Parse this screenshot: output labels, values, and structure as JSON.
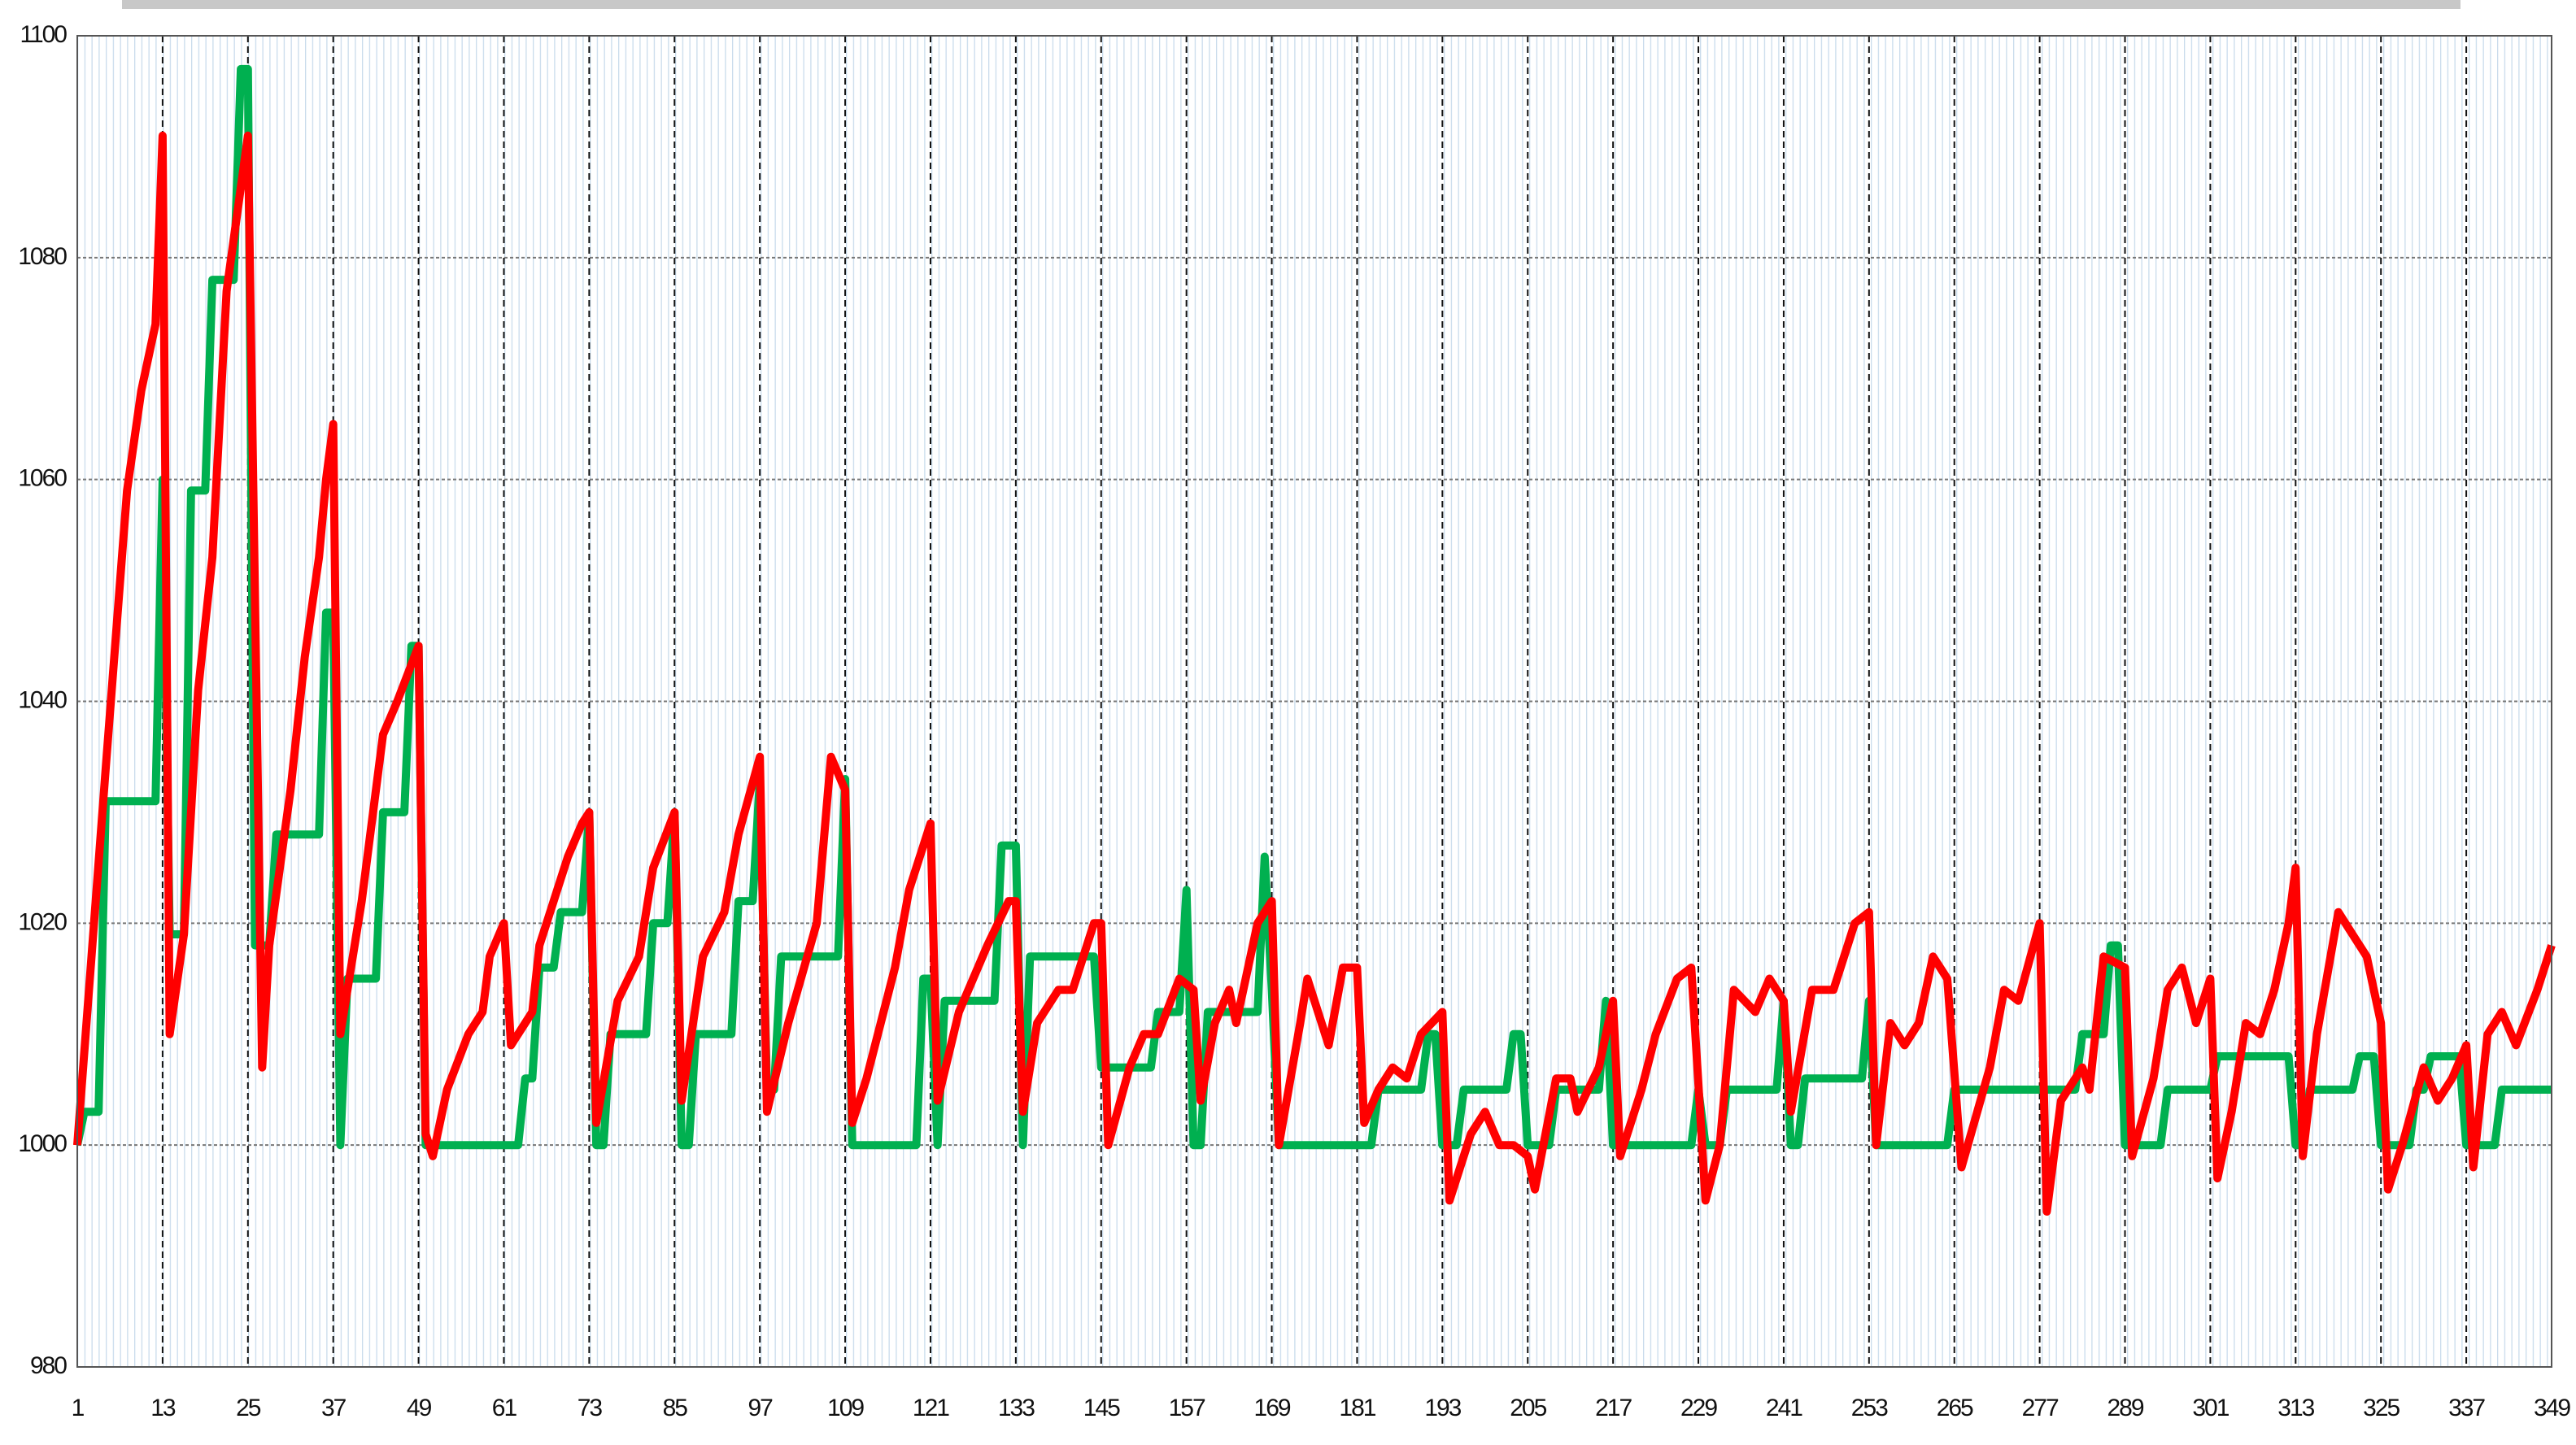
{
  "chart_data": {
    "type": "line",
    "xlim": [
      1,
      349
    ],
    "xticks": [
      1,
      13,
      25,
      37,
      49,
      61,
      73,
      85,
      97,
      109,
      121,
      133,
      145,
      157,
      169,
      181,
      193,
      205,
      217,
      229,
      241,
      253,
      265,
      277,
      289,
      301,
      313,
      325,
      337,
      349
    ],
    "ylim": [
      980,
      1100
    ],
    "yticks": [
      980,
      1000,
      1020,
      1040,
      1060,
      1080,
      1100
    ],
    "grid": true,
    "series": [
      {
        "color": "#00b050",
        "x": [
          1,
          2,
          4,
          5,
          12,
          13,
          14,
          16,
          17,
          19,
          20,
          23,
          24,
          25,
          26,
          28,
          29,
          35,
          36,
          37,
          38,
          39,
          43,
          44,
          47,
          48,
          49,
          50,
          63,
          64,
          65,
          66,
          68,
          69,
          72,
          73,
          74,
          75,
          76,
          81,
          82,
          84,
          85,
          86,
          87,
          88,
          93,
          94,
          96,
          97,
          98,
          99,
          100,
          108,
          109,
          110,
          119,
          120,
          121,
          122,
          123,
          130,
          131,
          133,
          134,
          135,
          144,
          145,
          152,
          153,
          156,
          157,
          158,
          159,
          160,
          167,
          168,
          169,
          170,
          183,
          184,
          190,
          191,
          192,
          193,
          195,
          196,
          202,
          203,
          204,
          205,
          208,
          209,
          215,
          216,
          217,
          228,
          229,
          230,
          232,
          233,
          240,
          241,
          242,
          243,
          244,
          252,
          253,
          254,
          264,
          265,
          282,
          283,
          286,
          287,
          288,
          289,
          294,
          295,
          301,
          302,
          312,
          313,
          314,
          315,
          321,
          322,
          324,
          325,
          329,
          330,
          331,
          332,
          336,
          337,
          341,
          342,
          349
        ],
        "values": [
          1000,
          1003,
          1003,
          1031,
          1031,
          1060,
          1019,
          1019,
          1059,
          1059,
          1078,
          1078,
          1097,
          1097,
          1018,
          1018,
          1028,
          1028,
          1048,
          1048,
          1000,
          1015,
          1015,
          1030,
          1030,
          1045,
          1045,
          1000,
          1000,
          1006,
          1006,
          1016,
          1016,
          1021,
          1021,
          1030,
          1000,
          1000,
          1010,
          1010,
          1020,
          1020,
          1030,
          1000,
          1000,
          1010,
          1010,
          1022,
          1022,
          1033,
          1005,
          1005,
          1017,
          1017,
          1033,
          1000,
          1000,
          1015,
          1015,
          1000,
          1013,
          1013,
          1027,
          1027,
          1000,
          1017,
          1017,
          1007,
          1007,
          1012,
          1012,
          1023,
          1000,
          1000,
          1012,
          1012,
          1026,
          1014,
          1000,
          1000,
          1005,
          1005,
          1010,
          1010,
          1000,
          1000,
          1005,
          1005,
          1010,
          1010,
          1000,
          1000,
          1005,
          1005,
          1013,
          1000,
          1000,
          1005,
          1000,
          1000,
          1005,
          1005,
          1013,
          1000,
          1000,
          1006,
          1006,
          1013,
          1000,
          1000,
          1005,
          1005,
          1010,
          1010,
          1018,
          1018,
          1000,
          1000,
          1005,
          1005,
          1008,
          1008,
          1000,
          1000,
          1005,
          1005,
          1008,
          1008,
          1000,
          1000,
          1005,
          1005,
          1008,
          1008,
          1000,
          1000,
          1005,
          1005
        ]
      },
      {
        "color": "#ff0000",
        "x": [
          1,
          5,
          8,
          10,
          12,
          13,
          14,
          16,
          18,
          20,
          22,
          25,
          27,
          28,
          31,
          33,
          35,
          36,
          37,
          38,
          41,
          44,
          46,
          49,
          50,
          51,
          53,
          56,
          58,
          59,
          61,
          62,
          65,
          66,
          70,
          72,
          73,
          74,
          77,
          80,
          82,
          85,
          86,
          89,
          92,
          94,
          97,
          98,
          101,
          105,
          107,
          109,
          110,
          112,
          116,
          118,
          121,
          122,
          125,
          129,
          132,
          133,
          134,
          136,
          139,
          141,
          144,
          145,
          146,
          149,
          151,
          153,
          156,
          158,
          159,
          161,
          163,
          164,
          167,
          169,
          170,
          173,
          174,
          177,
          179,
          181,
          182,
          184,
          186,
          188,
          190,
          193,
          194,
          197,
          199,
          201,
          203,
          205,
          206,
          209,
          211,
          212,
          215,
          217,
          218,
          221,
          223,
          226,
          228,
          230,
          232,
          234,
          237,
          239,
          241,
          242,
          245,
          248,
          251,
          253,
          254,
          256,
          258,
          260,
          262,
          264,
          266,
          270,
          272,
          274,
          277,
          278,
          280,
          283,
          284,
          286,
          289,
          290,
          293,
          295,
          297,
          299,
          301,
          302,
          304,
          306,
          308,
          310,
          312,
          313,
          314,
          316,
          319,
          321,
          323,
          325,
          326,
          328,
          331,
          333,
          335,
          337,
          338,
          340,
          342,
          344,
          347,
          349
        ],
        "values": [
          1000,
          1034,
          1059,
          1068,
          1074,
          1091,
          1010,
          1019,
          1041,
          1053,
          1077,
          1091,
          1007,
          1018,
          1032,
          1044,
          1053,
          1060,
          1065,
          1010,
          1022,
          1037,
          1040,
          1045,
          1001,
          999,
          1005,
          1010,
          1012,
          1017,
          1020,
          1009,
          1012,
          1018,
          1026,
          1029,
          1030,
          1002,
          1013,
          1017,
          1025,
          1030,
          1004,
          1017,
          1021,
          1028,
          1035,
          1003,
          1011,
          1020,
          1035,
          1032,
          1002,
          1006,
          1016,
          1023,
          1029,
          1004,
          1012,
          1018,
          1022,
          1022,
          1003,
          1011,
          1014,
          1014,
          1020,
          1020,
          1000,
          1007,
          1010,
          1010,
          1015,
          1014,
          1004,
          1011,
          1014,
          1011,
          1020,
          1022,
          1000,
          1011,
          1015,
          1009,
          1016,
          1016,
          1002,
          1005,
          1007,
          1006,
          1010,
          1012,
          995,
          1001,
          1003,
          1000,
          1000,
          999,
          996,
          1006,
          1006,
          1003,
          1007,
          1013,
          999,
          1005,
          1010,
          1015,
          1016,
          995,
          1000,
          1014,
          1012,
          1015,
          1013,
          1003,
          1014,
          1014,
          1020,
          1021,
          1000,
          1011,
          1009,
          1011,
          1017,
          1015,
          998,
          1007,
          1014,
          1013,
          1020,
          994,
          1004,
          1007,
          1005,
          1017,
          1016,
          999,
          1006,
          1014,
          1016,
          1011,
          1015,
          997,
          1003,
          1011,
          1010,
          1014,
          1020,
          1025,
          999,
          1010,
          1021,
          1019,
          1017,
          1011,
          996,
          1000,
          1007,
          1004,
          1006,
          1009,
          998,
          1010,
          1012,
          1009,
          1014,
          1018
        ]
      }
    ]
  }
}
